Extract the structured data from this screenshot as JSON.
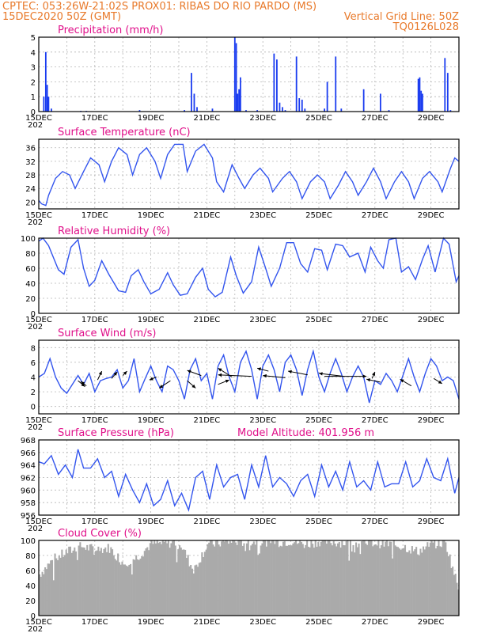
{
  "header": {
    "line1": "CPTEC:    053:26W-21:02S    PROX01: RIBAS DO RIO PARDO (MS)",
    "line2_left": "15DEC2020 50Z (GMT)",
    "line2_right": "Vertical Grid Line: 50Z",
    "line3_right": "TQ0126L028"
  },
  "x_axis": {
    "labels": [
      "15DEC",
      "17DEC",
      "19DEC",
      "21DEC",
      "23DEC",
      "25DEC",
      "27DEC",
      "29DEC"
    ],
    "under_label": "202"
  },
  "colors": {
    "line": "#3355ee",
    "bar": "#1a3cf0",
    "cloud": "#aaaaaa",
    "header": "#e8792a",
    "title": "#e0108a"
  },
  "chart_data": [
    {
      "type": "bar",
      "title": "Precipitation (mm/h)",
      "x_unit": "days since 15DEC",
      "ylim": [
        0,
        5
      ],
      "yticks": [
        0,
        1,
        2,
        3,
        4,
        5
      ],
      "x": [
        0.18,
        0.25,
        0.3,
        0.35,
        0.45,
        1.5,
        1.7,
        3.6,
        5.2,
        5.45,
        5.55,
        5.65,
        6.2,
        7.0,
        7.05,
        7.1,
        7.15,
        7.2,
        7.4,
        7.8,
        8.4,
        8.5,
        8.6,
        8.7,
        8.8,
        9.2,
        9.3,
        9.4,
        9.5,
        10.2,
        10.3,
        10.6,
        10.8,
        11.6,
        12.2,
        12.5,
        13.55,
        13.6,
        13.65,
        13.7,
        14.5,
        14.6,
        14.7
      ],
      "values": [
        1.0,
        4.0,
        1.8,
        1.0,
        0.2,
        0.05,
        0.05,
        0.1,
        0.1,
        2.6,
        1.2,
        0.3,
        0.2,
        5.0,
        4.6,
        1.2,
        1.5,
        2.3,
        0.1,
        0.1,
        3.9,
        3.5,
        0.6,
        0.3,
        0.1,
        3.7,
        0.9,
        0.8,
        0.2,
        0.2,
        2.0,
        3.7,
        0.2,
        1.5,
        1.2,
        0.1,
        2.2,
        2.3,
        1.4,
        1.2,
        3.6,
        2.6,
        0.1
      ]
    },
    {
      "type": "line",
      "title": "Surface Temperature (nC)",
      "x_unit": "days since 15DEC",
      "ylim": [
        18,
        38.5
      ],
      "yticks": [
        20,
        24,
        28,
        32,
        36
      ],
      "x": [
        0.0,
        0.1,
        0.25,
        0.35,
        0.6,
        0.85,
        1.1,
        1.3,
        1.6,
        1.85,
        2.15,
        2.35,
        2.6,
        2.85,
        3.15,
        3.35,
        3.6,
        3.85,
        4.15,
        4.35,
        4.6,
        4.85,
        5.15,
        5.3,
        5.6,
        5.9,
        6.2,
        6.35,
        6.6,
        6.9,
        7.15,
        7.35,
        7.65,
        7.9,
        8.2,
        8.35,
        8.7,
        8.95,
        9.2,
        9.4,
        9.7,
        9.95,
        10.2,
        10.4,
        10.7,
        10.95,
        11.2,
        11.4,
        11.7,
        11.95,
        12.2,
        12.4,
        12.7,
        12.95,
        13.2,
        13.4,
        13.7,
        13.95,
        14.25,
        14.4,
        14.7,
        14.85,
        15.0
      ],
      "y": [
        20.5,
        19.5,
        19.0,
        22.0,
        27.0,
        29.0,
        28.0,
        24.0,
        29.0,
        33.0,
        31.0,
        26.0,
        32.0,
        36.0,
        34.0,
        28.0,
        34.0,
        36.0,
        32.0,
        27.0,
        34.0,
        37.0,
        37.0,
        29.0,
        35.0,
        37.0,
        33.0,
        26.0,
        23.0,
        31.0,
        27.0,
        24.0,
        28.0,
        30.0,
        27.0,
        23.0,
        27.0,
        29.0,
        26.0,
        21.0,
        26.0,
        28.0,
        26.0,
        21.0,
        25.0,
        29.0,
        26.0,
        22.0,
        26.0,
        30.0,
        26.0,
        21.0,
        26.0,
        29.0,
        26.0,
        21.0,
        27.0,
        29.0,
        26.0,
        23.0,
        30.0,
        33.0,
        32.0
      ]
    },
    {
      "type": "line",
      "title": "Relative Humidity (%)",
      "x_unit": "days since 15DEC",
      "ylim": [
        0,
        100
      ],
      "yticks": [
        0,
        20,
        40,
        60,
        80,
        100
      ],
      "x": [
        0.0,
        0.15,
        0.35,
        0.7,
        0.9,
        1.15,
        1.4,
        1.6,
        1.8,
        2.0,
        2.25,
        2.5,
        2.85,
        3.1,
        3.3,
        3.55,
        3.75,
        4.0,
        4.3,
        4.6,
        4.8,
        5.05,
        5.3,
        5.6,
        5.85,
        6.05,
        6.3,
        6.55,
        6.85,
        7.05,
        7.3,
        7.6,
        7.85,
        8.1,
        8.3,
        8.6,
        8.85,
        9.1,
        9.35,
        9.6,
        9.85,
        10.1,
        10.3,
        10.6,
        10.85,
        11.1,
        11.4,
        11.65,
        11.85,
        12.1,
        12.3,
        12.5,
        12.75,
        12.95,
        13.2,
        13.45,
        13.7,
        13.9,
        14.15,
        14.45,
        14.65,
        14.9,
        15.0
      ],
      "y": [
        96,
        100,
        90,
        58,
        52,
        88,
        98,
        60,
        36,
        44,
        70,
        52,
        30,
        28,
        50,
        58,
        42,
        26,
        32,
        54,
        38,
        24,
        26,
        48,
        60,
        32,
        22,
        28,
        75,
        50,
        27,
        42,
        88,
        60,
        36,
        60,
        94,
        94,
        66,
        55,
        86,
        84,
        58,
        92,
        90,
        75,
        80,
        55,
        88,
        70,
        60,
        98,
        100,
        55,
        62,
        45,
        72,
        90,
        55,
        100,
        92,
        42,
        50
      ]
    },
    {
      "type": "line",
      "title": "Surface Wind (m/s)",
      "x_unit": "days since 15DEC",
      "ylim": [
        -1,
        9
      ],
      "yticks": [
        0,
        2,
        4,
        6,
        8
      ],
      "x": [
        0.0,
        0.2,
        0.4,
        0.6,
        0.8,
        1.0,
        1.2,
        1.4,
        1.6,
        1.8,
        2.0,
        2.2,
        2.4,
        2.6,
        2.8,
        3.0,
        3.2,
        3.4,
        3.6,
        3.8,
        4.0,
        4.2,
        4.4,
        4.6,
        4.8,
        5.0,
        5.2,
        5.4,
        5.6,
        5.8,
        6.0,
        6.2,
        6.4,
        6.6,
        6.8,
        7.0,
        7.2,
        7.4,
        7.6,
        7.8,
        8.0,
        8.2,
        8.4,
        8.6,
        8.8,
        9.0,
        9.2,
        9.4,
        9.6,
        9.8,
        10.0,
        10.2,
        10.4,
        10.6,
        10.8,
        11.0,
        11.2,
        11.4,
        11.6,
        11.8,
        12.0,
        12.2,
        12.4,
        12.6,
        12.8,
        13.0,
        13.2,
        13.4,
        13.6,
        13.8,
        14.0,
        14.2,
        14.4,
        14.6,
        14.8,
        15.0
      ],
      "y": [
        4.0,
        4.5,
        6.5,
        4.0,
        2.5,
        1.8,
        3.0,
        4.2,
        3.0,
        4.5,
        2.0,
        3.5,
        3.8,
        4.0,
        5.0,
        2.5,
        3.5,
        6.5,
        2.0,
        3.8,
        5.5,
        3.5,
        2.0,
        5.5,
        5.0,
        3.5,
        1.0,
        5.0,
        6.5,
        3.5,
        4.5,
        1.0,
        5.5,
        7.0,
        4.0,
        2.0,
        6.0,
        7.5,
        5.0,
        1.0,
        5.5,
        7.0,
        5.0,
        2.0,
        6.0,
        7.0,
        5.0,
        1.5,
        5.0,
        7.5,
        4.0,
        2.0,
        4.5,
        6.5,
        4.5,
        2.0,
        4.0,
        5.5,
        4.0,
        0.5,
        3.5,
        3.0,
        4.5,
        3.5,
        2.0,
        4.2,
        6.5,
        4.0,
        2.0,
        4.5,
        6.5,
        5.5,
        3.5,
        4.0,
        3.5,
        1.0
      ],
      "vectors": [
        {
          "x": 1.4,
          "y": 3.5,
          "dx": 0.25,
          "dy": -0.8
        },
        {
          "x": 1.7,
          "y": 2.8,
          "dx": -0.2,
          "dy": 0.6
        },
        {
          "x": 2.1,
          "y": 3.6,
          "dx": 0.15,
          "dy": 1.2
        },
        {
          "x": 2.6,
          "y": 3.8,
          "dx": 0.2,
          "dy": 0.9
        },
        {
          "x": 3.0,
          "y": 4.2,
          "dx": 0.15,
          "dy": 0.6
        },
        {
          "x": 4.2,
          "y": 4.0,
          "dx": -0.25,
          "dy": -0.4
        },
        {
          "x": 4.7,
          "y": 3.5,
          "dx": -0.4,
          "dy": -1.0
        },
        {
          "x": 5.3,
          "y": 3.5,
          "dx": 0.3,
          "dy": -1.0
        },
        {
          "x": 5.8,
          "y": 4.2,
          "dx": -0.5,
          "dy": 0.7
        },
        {
          "x": 6.4,
          "y": 3.0,
          "dx": 0.4,
          "dy": 0.6
        },
        {
          "x": 6.9,
          "y": 4.0,
          "dx": -0.5,
          "dy": 1.2
        },
        {
          "x": 7.6,
          "y": 4.1,
          "dx": -1.2,
          "dy": 0.2
        },
        {
          "x": 8.2,
          "y": 4.8,
          "dx": -0.4,
          "dy": 0.4
        },
        {
          "x": 8.8,
          "y": 3.9,
          "dx": -0.8,
          "dy": 0.3
        },
        {
          "x": 9.6,
          "y": 4.3,
          "dx": -0.7,
          "dy": 0.5
        },
        {
          "x": 10.2,
          "y": 4.1,
          "dx": 1.5,
          "dy": 0.0
        },
        {
          "x": 10.9,
          "y": 4.1,
          "dx": -0.9,
          "dy": 0.4
        },
        {
          "x": 11.9,
          "y": 3.8,
          "dx": 0.1,
          "dy": 0.9
        },
        {
          "x": 12.2,
          "y": 3.3,
          "dx": -0.5,
          "dy": 0.4
        },
        {
          "x": 13.3,
          "y": 2.8,
          "dx": -0.4,
          "dy": 0.9
        },
        {
          "x": 14.1,
          "y": 3.8,
          "dx": 0.3,
          "dy": -0.7
        }
      ]
    },
    {
      "type": "line",
      "title": "Surface Pressure (hPa)",
      "x_unit": "days since 15DEC",
      "ylim": [
        956,
        968
      ],
      "yticks": [
        956,
        958,
        960,
        962,
        964,
        966,
        968
      ],
      "x": [
        0.0,
        0.2,
        0.45,
        0.7,
        0.95,
        1.2,
        1.4,
        1.6,
        1.85,
        2.1,
        2.35,
        2.6,
        2.85,
        3.1,
        3.35,
        3.6,
        3.85,
        4.1,
        4.35,
        4.6,
        4.85,
        5.1,
        5.35,
        5.6,
        5.85,
        6.1,
        6.35,
        6.6,
        6.85,
        7.1,
        7.35,
        7.6,
        7.85,
        8.1,
        8.35,
        8.6,
        8.85,
        9.1,
        9.35,
        9.6,
        9.85,
        10.1,
        10.35,
        10.6,
        10.85,
        11.1,
        11.35,
        11.6,
        11.85,
        12.1,
        12.35,
        12.6,
        12.85,
        13.1,
        13.35,
        13.6,
        13.85,
        14.1,
        14.35,
        14.6,
        14.85,
        15.0
      ],
      "y": [
        964.5,
        964.2,
        965.5,
        962.5,
        964.0,
        962.0,
        966.5,
        963.5,
        963.5,
        965.0,
        962.0,
        963.0,
        959.0,
        962.5,
        960.0,
        958.0,
        961.0,
        957.5,
        958.5,
        961.5,
        957.5,
        959.5,
        956.8,
        962.0,
        963.0,
        958.5,
        964.0,
        960.5,
        962.0,
        962.5,
        958.5,
        964.0,
        960.5,
        965.5,
        960.5,
        962.0,
        961.0,
        959.0,
        961.5,
        962.5,
        959.0,
        964.0,
        960.5,
        963.0,
        960.0,
        964.5,
        960.5,
        961.5,
        960.0,
        964.5,
        960.5,
        961.0,
        961.0,
        964.5,
        960.5,
        961.5,
        965.0,
        962.0,
        961.5,
        965.0,
        959.5,
        962.0
      ],
      "annotation": "Model Altitude: 401.956  m"
    },
    {
      "type": "bar",
      "title": "Cloud Cover (%)",
      "x_unit": "days since 15DEC",
      "ylim": [
        0,
        100
      ],
      "yticks": [
        0,
        20,
        40,
        60,
        80,
        100
      ],
      "knots_x": [
        0,
        0.5,
        1.0,
        1.5,
        2.0,
        2.5,
        3.0,
        3.5,
        4.0,
        4.5,
        5.0,
        5.5,
        6.0,
        6.5,
        7.0,
        7.5,
        8.0,
        8.5,
        9.0,
        9.5,
        10.0,
        10.5,
        11.0,
        11.5,
        12.0,
        12.5,
        13.0,
        13.5,
        14.0,
        14.5,
        15.0
      ],
      "knots_y": [
        55,
        75,
        85,
        92,
        88,
        90,
        70,
        78,
        96,
        96,
        98,
        60,
        95,
        97,
        99,
        98,
        99,
        98,
        99,
        95,
        99,
        98,
        97,
        96,
        97,
        95,
        92,
        85,
        95,
        97,
        30
      ]
    }
  ]
}
